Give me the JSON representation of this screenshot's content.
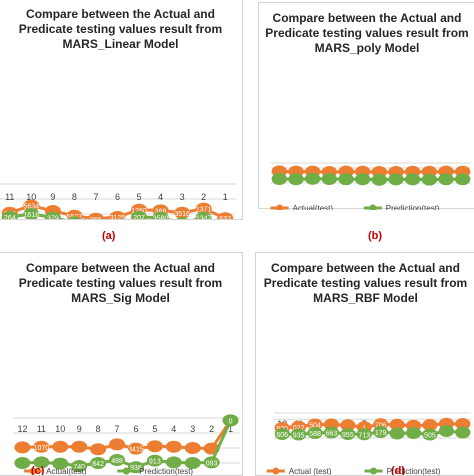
{
  "colors": {
    "actual": "#ed7d31",
    "prediction": "#70ad47",
    "grid": "#d9d9d9",
    "text": "#404040",
    "label": "#ffffff",
    "caption": "#c00000"
  },
  "chart_data": [
    {
      "type": "line",
      "caption": "(a)",
      "title_lines": [
        "Compare between the Actual and",
        "Predicate testing values result from",
        "MARS_Linear Model"
      ],
      "x": [
        "11",
        "10",
        "9",
        "8",
        "7",
        "6",
        "5",
        "4",
        "3",
        "2",
        "1"
      ],
      "series": [
        {
          "name": "Actual (test)",
          "values": [
            0.48,
            0.36,
            0.45,
            0.53,
            0.58,
            0.55,
            0.43,
            0.44,
            0.48,
            0.41,
            0.57
          ],
          "labels": [
            "264",
            "5634",
            "",
            "5527",
            "965",
            "3125",
            "1260",
            "368",
            "3516",
            "1371",
            "537"
          ]
        },
        {
          "name": "Prediction (test)",
          "values": [
            0.55,
            0.5,
            0.56,
            0.64,
            0.92,
            0.88,
            0.55,
            0.56,
            0.65,
            0.56,
            0.93
          ],
          "labels": [
            "264",
            "1618",
            "379",
            "3590",
            "4628",
            "290",
            "207",
            "3580",
            "3582",
            "1347",
            "1546"
          ]
        }
      ],
      "ylim": [
        0,
        1
      ]
    },
    {
      "type": "line",
      "caption": "(b)",
      "title_lines": [
        "Compare between the Actual and",
        "Predicate testing values result from",
        "MARS_poly Model"
      ],
      "x": [
        "12",
        "11",
        "10",
        "9",
        "8",
        "7",
        "6",
        "5",
        "4",
        "3",
        "2",
        "1"
      ],
      "series": [
        {
          "name": "Actual(test)",
          "values": [
            0.42,
            0.43,
            0.43,
            0.45,
            0.43,
            0.44,
            0.45,
            0.45,
            0.44,
            0.44,
            0.43,
            0.44
          ],
          "labels": [
            "",
            "",
            "",
            "",
            "",
            "",
            "",
            "",
            "",
            "",
            "",
            ""
          ]
        },
        {
          "name": "Prediction(test)",
          "values": [
            0.8,
            0.81,
            0.79,
            0.8,
            0.81,
            0.81,
            0.84,
            0.82,
            0.82,
            0.83,
            0.81,
            0.81
          ],
          "labels": [
            "",
            "",
            "",
            "",
            "",
            "",
            "",
            "",
            "",
            "",
            "",
            ""
          ]
        }
      ],
      "ylim": [
        0,
        1
      ]
    },
    {
      "type": "line",
      "caption": "(c)",
      "title_lines": [
        "Compare between the Actual and",
        "Predicate testing values result from",
        "MARS_Sig Model"
      ],
      "x": [
        "12",
        "11",
        "10",
        "9",
        "8",
        "7",
        "6",
        "5",
        "4",
        "3",
        "2",
        "1"
      ],
      "series": [
        {
          "name": "Actual(test)",
          "values": [
            0.49,
            0.48,
            0.48,
            0.48,
            0.52,
            0.44,
            0.51,
            0.47,
            0.48,
            0.5,
            0.51,
            0.04
          ],
          "labels": [
            "",
            "1070",
            "",
            "",
            "",
            "",
            "3415",
            "",
            "",
            "",
            "",
            "0"
          ]
        },
        {
          "name": "Prediction(test)",
          "values": [
            0.75,
            0.74,
            0.76,
            0.8,
            0.75,
            0.7,
            0.82,
            0.71,
            0.74,
            0.75,
            0.74,
            0.04
          ],
          "labels": [
            "",
            "",
            "",
            "740",
            "842",
            "488",
            "936",
            "913",
            "",
            "",
            "093",
            "0"
          ]
        }
      ],
      "ylim": [
        0,
        1
      ]
    },
    {
      "type": "line",
      "caption": "(d)",
      "title_lines": [
        "Compare between the Actual and",
        "Predicate testing values result from",
        "MARS_RBF Model"
      ],
      "x": [
        "12",
        "11",
        "10",
        "9",
        "8",
        "7",
        "6",
        "5",
        "4",
        "3",
        "2",
        "1"
      ],
      "series": [
        {
          "name": "Actual (test)",
          "values": [
            0.6,
            0.55,
            0.46,
            0.46,
            0.49,
            0.57,
            0.45,
            0.47,
            0.51,
            0.48,
            0.43,
            0.44
          ],
          "labels": [
            "920",
            "022",
            "504",
            "",
            "",
            "1",
            "706",
            "",
            "",
            "",
            "",
            ""
          ]
        },
        {
          "name": "Prediction(test)",
          "values": [
            0.84,
            0.86,
            0.8,
            0.78,
            0.84,
            0.85,
            0.76,
            0.82,
            0.8,
            0.86,
            0.72,
            0.78
          ],
          "labels": [
            "606",
            "935",
            "588",
            "663",
            "955",
            "713",
            "179",
            "",
            "",
            "505",
            "",
            ""
          ]
        }
      ],
      "ylim": [
        0,
        1
      ]
    }
  ]
}
